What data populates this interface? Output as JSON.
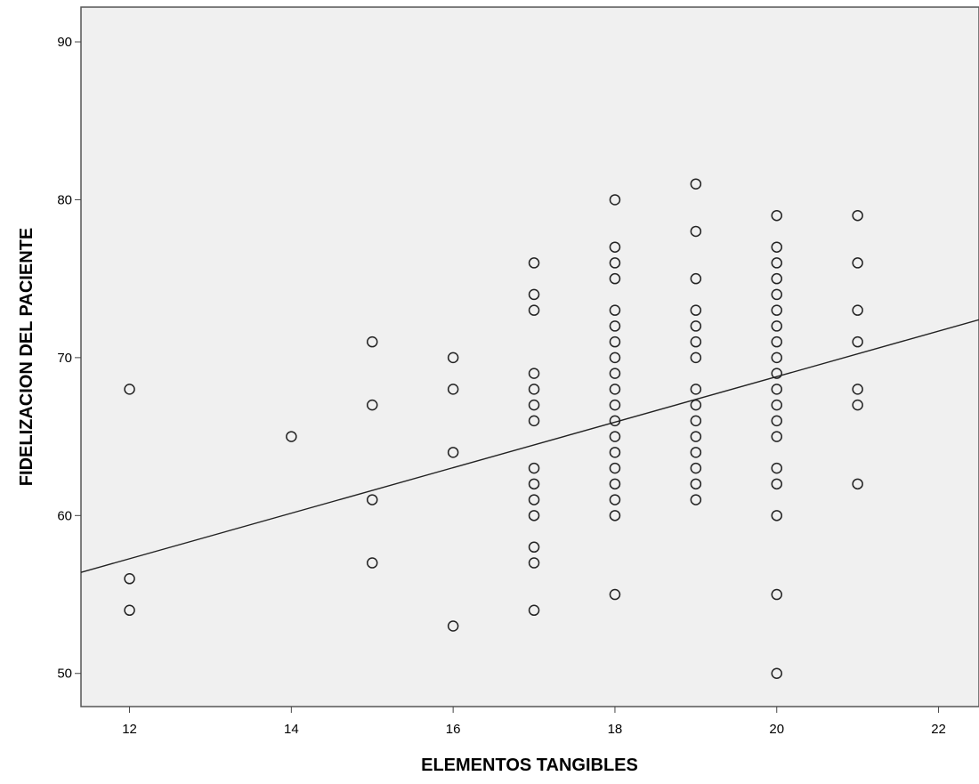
{
  "chart_data": {
    "type": "scatter",
    "title": "",
    "xlabel": "ELEMENTOS TANGIBLES",
    "ylabel": "FIDELIZACION DEL PACIENTE",
    "xlim": [
      11.4,
      22.5
    ],
    "ylim": [
      47.9,
      92.2
    ],
    "x_ticks": [
      "12",
      "14",
      "16",
      "18",
      "20",
      "22"
    ],
    "y_ticks": [
      "50",
      "60",
      "70",
      "80",
      "90"
    ],
    "grid": false,
    "legend": "none",
    "colors": {
      "plot_background": "#f0f0f0",
      "marker_stroke": "#222222",
      "fit_line": "#222222",
      "axis": "#444444"
    },
    "marker": "open-circle",
    "fit_line": {
      "type": "linear",
      "points": [
        [
          11.4,
          56.4
        ],
        [
          22.5,
          72.4
        ]
      ]
    },
    "series": [
      {
        "points": [
          [
            12,
            68
          ],
          [
            12,
            56
          ],
          [
            12,
            54
          ],
          [
            14,
            65
          ],
          [
            15,
            71
          ],
          [
            15,
            67
          ],
          [
            15,
            61
          ],
          [
            15,
            57
          ],
          [
            16,
            70
          ],
          [
            16,
            68
          ],
          [
            16,
            64
          ],
          [
            16,
            53
          ],
          [
            17,
            76
          ],
          [
            17,
            74
          ],
          [
            17,
            73
          ],
          [
            17,
            69
          ],
          [
            17,
            68
          ],
          [
            17,
            67
          ],
          [
            17,
            66
          ],
          [
            17,
            63
          ],
          [
            17,
            62
          ],
          [
            17,
            61
          ],
          [
            17,
            60
          ],
          [
            17,
            58
          ],
          [
            17,
            57
          ],
          [
            17,
            54
          ],
          [
            18,
            80
          ],
          [
            18,
            77
          ],
          [
            18,
            76
          ],
          [
            18,
            75
          ],
          [
            18,
            73
          ],
          [
            18,
            72
          ],
          [
            18,
            71
          ],
          [
            18,
            70
          ],
          [
            18,
            69
          ],
          [
            18,
            68
          ],
          [
            18,
            67
          ],
          [
            18,
            66
          ],
          [
            18,
            65
          ],
          [
            18,
            64
          ],
          [
            18,
            63
          ],
          [
            18,
            62
          ],
          [
            18,
            61
          ],
          [
            18,
            60
          ],
          [
            18,
            55
          ],
          [
            19,
            81
          ],
          [
            19,
            78
          ],
          [
            19,
            75
          ],
          [
            19,
            73
          ],
          [
            19,
            72
          ],
          [
            19,
            71
          ],
          [
            19,
            70
          ],
          [
            19,
            68
          ],
          [
            19,
            67
          ],
          [
            19,
            66
          ],
          [
            19,
            65
          ],
          [
            19,
            64
          ],
          [
            19,
            63
          ],
          [
            19,
            62
          ],
          [
            19,
            61
          ],
          [
            20,
            79
          ],
          [
            20,
            77
          ],
          [
            20,
            76
          ],
          [
            20,
            75
          ],
          [
            20,
            74
          ],
          [
            20,
            73
          ],
          [
            20,
            72
          ],
          [
            20,
            71
          ],
          [
            20,
            70
          ],
          [
            20,
            69
          ],
          [
            20,
            68
          ],
          [
            20,
            67
          ],
          [
            20,
            66
          ],
          [
            20,
            65
          ],
          [
            20,
            63
          ],
          [
            20,
            62
          ],
          [
            20,
            60
          ],
          [
            20,
            55
          ],
          [
            20,
            50
          ],
          [
            21,
            79
          ],
          [
            21,
            76
          ],
          [
            21,
            73
          ],
          [
            21,
            71
          ],
          [
            21,
            68
          ],
          [
            21,
            67
          ],
          [
            21,
            62
          ]
        ]
      }
    ]
  }
}
